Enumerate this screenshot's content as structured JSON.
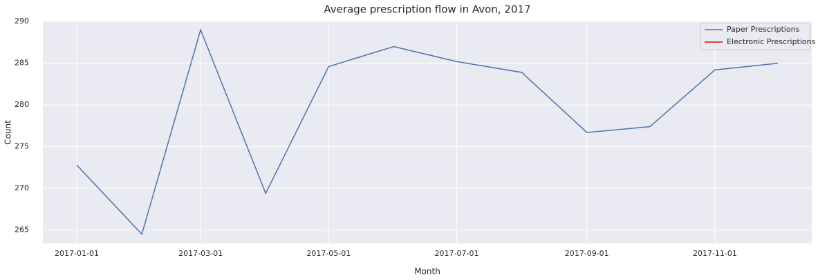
{
  "chart_data": {
    "type": "line",
    "title": "Average prescription flow in Avon, 2017",
    "xlabel": "Month",
    "ylabel": "Count",
    "x": [
      "2017-01-01",
      "2017-02-01",
      "2017-03-01",
      "2017-04-01",
      "2017-05-01",
      "2017-06-01",
      "2017-07-01",
      "2017-08-01",
      "2017-09-01",
      "2017-10-01",
      "2017-11-01",
      "2017-12-01"
    ],
    "xticks": [
      "2017-01-01",
      "2017-03-01",
      "2017-05-01",
      "2017-07-01",
      "2017-09-01",
      "2017-11-01"
    ],
    "series": [
      {
        "name": "Paper Prescriptions",
        "color": "#4c72b0",
        "values": [
          272.8,
          264.5,
          289.0,
          269.4,
          284.6,
          287.0,
          285.2,
          283.9,
          276.7,
          277.4,
          284.2,
          285.0
        ]
      },
      {
        "name": "Electronic Prescriptions",
        "color": "#e8000b",
        "values": [
          null,
          null,
          null,
          null,
          null,
          null,
          null,
          null,
          null,
          null,
          null,
          null
        ]
      }
    ],
    "ylim": [
      263.4,
      290.1
    ],
    "yticks": [
      265,
      270,
      275,
      280,
      285,
      290
    ],
    "grid": true,
    "legend": "upper right"
  }
}
